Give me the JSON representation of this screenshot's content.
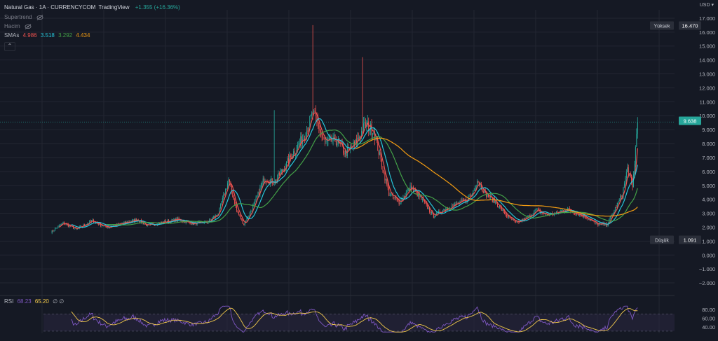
{
  "header": {
    "symbol": "Natural Gas · 1A · CURRENCYCOM",
    "source": "TradingView",
    "change": "+1.355 (+16.36%)",
    "supertrend_label": "Supertrend",
    "volume_label": "Hacim",
    "smas_label": "SMAs",
    "sma_values": [
      "4.986",
      "3.518",
      "3.292",
      "4.434"
    ],
    "collapse_glyph": "⌃",
    "currency": "USD ▾"
  },
  "colors": {
    "background": "#151924",
    "grid": "#232632",
    "up": "#26a69a",
    "down": "#ef5350",
    "sma_red": "#ef5350",
    "sma_cyan": "#26c6da",
    "sma_green": "#43a047",
    "sma_orange": "#f39c12",
    "rsi_line": "#7e57c2",
    "rsi_ma": "#f2c94c",
    "rsi_band": "#2a2640"
  },
  "price_axis": {
    "labels": [
      "17.000",
      "16.000",
      "15.000",
      "14.000",
      "13.000",
      "12.000",
      "11.000",
      "10.000",
      "9.000",
      "8.000",
      "7.000",
      "6.000",
      "5.000",
      "4.000",
      "3.000",
      "2.000",
      "1.000",
      "0.000",
      "−1.000",
      "−2.000"
    ],
    "values": [
      17,
      16,
      15,
      14,
      13,
      12,
      11,
      10,
      9,
      8,
      7,
      6,
      5,
      4,
      3,
      2,
      1,
      0,
      -1,
      -2
    ],
    "high_label": "Yüksek",
    "high_value": "16.470",
    "low_label": "Düşük",
    "low_value": "1.091",
    "last_value": "9.638"
  },
  "rsi": {
    "label": "RSI",
    "value": "68.23",
    "ma_value": "65.20",
    "extra": "∅ ∅",
    "axis_labels": [
      "80.00",
      "60.00",
      "40.00"
    ],
    "axis_values": [
      80,
      60,
      40
    ],
    "band": [
      30,
      70
    ],
    "ylim": [
      25,
      90
    ]
  },
  "chart_data": {
    "type": "candlestick",
    "title": "Natural Gas · 1A · CURRENCYCOM",
    "ylim": [
      -2.6,
      17.6
    ],
    "knots": [
      [
        0,
        1.65
      ],
      [
        12,
        2.3
      ],
      [
        25,
        1.85
      ],
      [
        40,
        2.45
      ],
      [
        55,
        2.0
      ],
      [
        70,
        2.25
      ],
      [
        85,
        2.55
      ],
      [
        95,
        2.1
      ],
      [
        110,
        2.35
      ],
      [
        125,
        2.55
      ],
      [
        140,
        2.25
      ],
      [
        155,
        2.4
      ],
      [
        165,
        3.0
      ],
      [
        175,
        5.4
      ],
      [
        183,
        3.2
      ],
      [
        190,
        2.2
      ],
      [
        200,
        3.6
      ],
      [
        210,
        5.5
      ],
      [
        220,
        5.2
      ],
      [
        230,
        6.3
      ],
      [
        240,
        7.5
      ],
      [
        250,
        8.6
      ],
      [
        258,
        10.2
      ],
      [
        263,
        9.4
      ],
      [
        270,
        8.0
      ],
      [
        280,
        8.3
      ],
      [
        290,
        7.3
      ],
      [
        300,
        8.0
      ],
      [
        310,
        9.4
      ],
      [
        318,
        8.9
      ],
      [
        325,
        6.8
      ],
      [
        333,
        4.4
      ],
      [
        343,
        3.8
      ],
      [
        355,
        4.9
      ],
      [
        365,
        4.0
      ],
      [
        377,
        2.8
      ],
      [
        388,
        3.3
      ],
      [
        398,
        3.6
      ],
      [
        408,
        3.9
      ],
      [
        415,
        4.4
      ],
      [
        420,
        5.4
      ],
      [
        428,
        4.4
      ],
      [
        438,
        3.8
      ],
      [
        448,
        2.9
      ],
      [
        458,
        2.3
      ],
      [
        468,
        2.6
      ],
      [
        478,
        3.2
      ],
      [
        488,
        2.9
      ],
      [
        498,
        3.0
      ],
      [
        508,
        3.3
      ],
      [
        518,
        3.0
      ],
      [
        528,
        2.7
      ],
      [
        538,
        2.2
      ],
      [
        548,
        2.2
      ],
      [
        555,
        3.2
      ],
      [
        563,
        4.4
      ],
      [
        568,
        6.2
      ],
      [
        573,
        4.8
      ],
      [
        578,
        9.6
      ]
    ],
    "series": [
      {
        "name": "SMA",
        "color": "#ef5350",
        "period": 5,
        "start": 8
      },
      {
        "name": "SMA",
        "color": "#26c6da",
        "period": 12,
        "start": 20
      },
      {
        "name": "SMA",
        "color": "#43a047",
        "period": 30,
        "start": 55
      },
      {
        "name": "SMA",
        "color": "#f39c12",
        "period": 90,
        "start": 300
      }
    ],
    "spikes": [
      {
        "i": 220,
        "hi": 10.4
      },
      {
        "i": 258,
        "hi": 16.5
      },
      {
        "i": 307,
        "hi": 14.2
      },
      {
        "i": 578,
        "hi": 9.9
      }
    ]
  }
}
